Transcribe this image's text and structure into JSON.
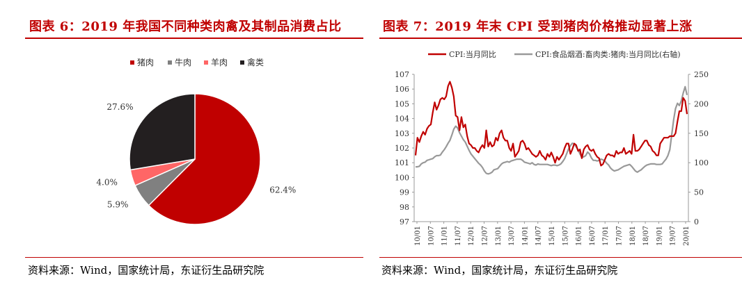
{
  "left": {
    "title": "图表 6：2019 年我国不同种类肉禽及其制品消费占比",
    "source": "资料来源：Wind，国家统计局，东证衍生品研究院"
  },
  "right": {
    "title": "图表 7：2019 年末 CPI 受到猪肉价格推动显著上涨",
    "source": "资料来源：Wind，国家统计局，东证衍生品研究院"
  },
  "chart_data": [
    {
      "type": "pie",
      "title": "",
      "legend_position": "top",
      "categories": [
        "猪肉",
        "牛肉",
        "羊肉",
        "禽类"
      ],
      "values": [
        62.4,
        5.9,
        4.0,
        27.6
      ],
      "labels": [
        "62.4%",
        "5.9%",
        "4.0%",
        "27.6%"
      ],
      "colors": [
        "#c00000",
        "#808080",
        "#ff6666",
        "#231f20"
      ]
    },
    {
      "type": "line",
      "title": "",
      "legend_position": "top",
      "x_ticks": [
        "10/01",
        "10/07",
        "11/01",
        "11/07",
        "12/01",
        "12/07",
        "13/01",
        "13/07",
        "14/01",
        "14/07",
        "15/01",
        "15/07",
        "16/01",
        "16/07",
        "17/01",
        "17/07",
        "18/01",
        "18/07",
        "19/01",
        "19/07",
        "20/01"
      ],
      "ylim": [
        97,
        107
      ],
      "y_ticks": [
        97,
        98,
        99,
        100,
        101,
        102,
        103,
        104,
        105,
        106,
        107
      ],
      "y2lim": [
        0,
        250
      ],
      "y2_ticks": [
        0,
        50,
        100,
        150,
        200,
        250
      ],
      "series": [
        {
          "name": "CPI:当月同比",
          "axis": "left",
          "color": "#c00000",
          "values": [
            101.5,
            102.7,
            102.4,
            102.8,
            103.1,
            102.9,
            103.3,
            103.5,
            103.6,
            104.4,
            105.1,
            104.6,
            104.9,
            105.3,
            105.4,
            105.3,
            105.5,
            106.2,
            106.5,
            106.1,
            105.5,
            104.2,
            104.1,
            103.2,
            104.1,
            103.4,
            103.6,
            102.8,
            102.3,
            102.2,
            102.0,
            102.0,
            101.8,
            101.7,
            102.0,
            102.2,
            102.0,
            103.2,
            102.1,
            102.4,
            102.1,
            102.2,
            102.7,
            102.5,
            103.0,
            103.2,
            102.7,
            102.5,
            102.5,
            102.0,
            101.8,
            102.3,
            101.4,
            101.6,
            101.8,
            102.4,
            102.5,
            102.3,
            101.9,
            102.0,
            101.8,
            101.6,
            101.5,
            101.4,
            101.5,
            101.8,
            101.5,
            101.4,
            101.2,
            101.6,
            101.4,
            101.7,
            101.4,
            101.0,
            101.4,
            101.2,
            101.4,
            101.6,
            102.0,
            102.3,
            102.3,
            101.6,
            101.9,
            102.3,
            102.2,
            101.8,
            101.9,
            101.3,
            101.9,
            102.1,
            102.2,
            101.9,
            101.8,
            101.9,
            101.6,
            101.4,
            101.3,
            100.8,
            100.9,
            101.2,
            101.5,
            101.6,
            101.5,
            101.5,
            101.4,
            101.8,
            101.6,
            101.7,
            101.7,
            102.0,
            101.6,
            101.7,
            101.8,
            101.6,
            102.9,
            101.8,
            101.8,
            101.9,
            102.1,
            102.3,
            102.5,
            102.5,
            102.2,
            102.1,
            101.8,
            101.7,
            101.5,
            101.5,
            102.3,
            102.5,
            102.7,
            102.7,
            102.7,
            102.8,
            102.8,
            102.8,
            103.0,
            103.8,
            104.5,
            104.5,
            105.4,
            105.2,
            104.3
          ]
        },
        {
          "name": "CPI:食品烟酒:畜肉类:猪肉:当月同比(右轴)",
          "axis": "right",
          "color": "#999999",
          "values": [
            93,
            93,
            94,
            98,
            100,
            101,
            104,
            105,
            106,
            107,
            110,
            112,
            112,
            113,
            118,
            122,
            127,
            133,
            138,
            147,
            157,
            162,
            159,
            151,
            145,
            139,
            135,
            128,
            121,
            115,
            111,
            107,
            103,
            99,
            96,
            92,
            86,
            82,
            81,
            82,
            84,
            88,
            89,
            90,
            94,
            98,
            100,
            101,
            102,
            101,
            103,
            104,
            105,
            106,
            106,
            106,
            104,
            101,
            100,
            99,
            98,
            100,
            97,
            96,
            98,
            97,
            97,
            97,
            97,
            97,
            96,
            95,
            96,
            96,
            95,
            96,
            98,
            102,
            107,
            115,
            123,
            129,
            133,
            132,
            127,
            122,
            115,
            109,
            110,
            112,
            118,
            115,
            108,
            104,
            104,
            103,
            104,
            106,
            105,
            103,
            99,
            96,
            91,
            88,
            86,
            87,
            88,
            90,
            92,
            94,
            95,
            96,
            97,
            94,
            90,
            86,
            84,
            86,
            88,
            91,
            94,
            96,
            97,
            98,
            98,
            98,
            97,
            97,
            97,
            98,
            102,
            106,
            112,
            122,
            147,
            173,
            192,
            201,
            197,
            205,
            218,
            229,
            215
          ]
        }
      ]
    }
  ]
}
